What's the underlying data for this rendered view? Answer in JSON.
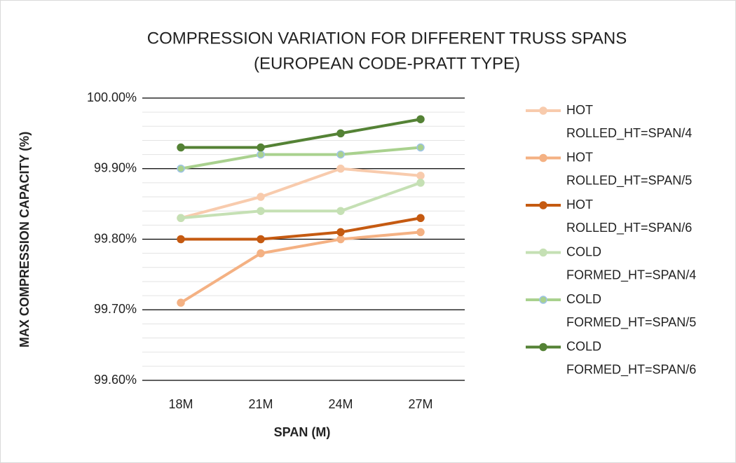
{
  "chart_data": {
    "type": "line",
    "title": "COMPRESSION VARIATION FOR DIFFERENT TRUSS SPANS",
    "subtitle": "(EUROPEAN CODE-PRATT TYPE)",
    "x_label": "SPAN (M)",
    "y_label": "MAX  COMPRESSION CAPACITY (%)",
    "categories": [
      "18M",
      "21M",
      "24M",
      "27M"
    ],
    "series": [
      {
        "name": "HOT ROLLED_HT=SPAN/4",
        "color": "#f8cbad",
        "values": [
          99.83,
          99.86,
          99.9,
          99.89
        ]
      },
      {
        "name": "HOT ROLLED_HT=SPAN/5",
        "color": "#f4b183",
        "values": [
          99.71,
          99.78,
          99.8,
          99.81
        ]
      },
      {
        "name": "HOT ROLLED_HT=SPAN/6",
        "color": "#c55a11",
        "values": [
          99.8,
          99.8,
          99.81,
          99.83
        ]
      },
      {
        "name": "COLD FORMED_HT=SPAN/4",
        "color": "#c5e0b4",
        "values": [
          99.83,
          99.84,
          99.84,
          99.88
        ]
      },
      {
        "name": "COLD FORMED_HT=SPAN/5",
        "color": "#a9d18e",
        "values": [
          99.9,
          99.92,
          99.92,
          99.93
        ]
      },
      {
        "name": "COLD FORMED_HT=SPAN/6",
        "color": "#548235",
        "values": [
          99.93,
          99.93,
          99.95,
          99.97
        ]
      }
    ],
    "ylim": [
      99.6,
      100.0
    ],
    "yticks": [
      {
        "value": 99.6,
        "label": "99.60%"
      },
      {
        "value": 99.7,
        "label": "99.70%"
      },
      {
        "value": 99.8,
        "label": "99.80%"
      },
      {
        "value": 99.9,
        "label": "99.90%"
      },
      {
        "value": 100.0,
        "label": "100.00%"
      }
    ],
    "minor_yticks": [
      99.62,
      99.64,
      99.66,
      99.68,
      99.72,
      99.74,
      99.76,
      99.78,
      99.82,
      99.84,
      99.86,
      99.88,
      99.92,
      99.94,
      99.96,
      99.98
    ],
    "grid": true,
    "legend": "right"
  }
}
